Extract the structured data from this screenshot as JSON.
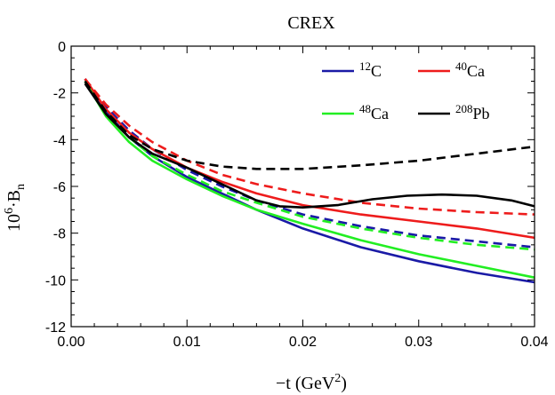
{
  "chart_data": {
    "type": "line",
    "title": "CREX",
    "xlabel": {
      "base": "−t (GeV",
      "sup": "2",
      "end": ")"
    },
    "ylabel": {
      "pre": "10",
      "sup": "6",
      "mid": "·B",
      "sub": "n"
    },
    "xlim": [
      0,
      0.04
    ],
    "ylim": [
      -12,
      0
    ],
    "xticks": [
      {
        "value": 0.0,
        "label": "0.00"
      },
      {
        "value": 0.01,
        "label": "0.01"
      },
      {
        "value": 0.02,
        "label": "0.02"
      },
      {
        "value": 0.03,
        "label": "0.03"
      },
      {
        "value": 0.04,
        "label": "0.04"
      }
    ],
    "yticks": [
      {
        "value": 0,
        "label": "0"
      },
      {
        "value": -2,
        "label": "-2"
      },
      {
        "value": -4,
        "label": "-4"
      },
      {
        "value": -6,
        "label": "-6"
      },
      {
        "value": -8,
        "label": "-8"
      },
      {
        "value": -10,
        "label": "-10"
      },
      {
        "value": -12,
        "label": "-12"
      }
    ],
    "legend": {
      "placement": "top-right",
      "items": [
        {
          "sup": "12",
          "text": "C",
          "color": "#1a1aa6"
        },
        {
          "sup": "40",
          "text": "Ca",
          "color": "#ee1c1c"
        },
        {
          "sup": "48",
          "text": "Ca",
          "color": "#22ee22"
        },
        {
          "sup": "208",
          "text": "Pb",
          "color": "#000000"
        }
      ]
    },
    "series": [
      {
        "key": "c12-solid",
        "color": "#1a1aa6",
        "style": "solid",
        "x": [
          0.0012,
          0.003,
          0.005,
          0.007,
          0.01,
          0.013,
          0.016,
          0.02,
          0.025,
          0.03,
          0.035,
          0.04
        ],
        "y": [
          -1.4,
          -2.8,
          -3.9,
          -4.7,
          -5.6,
          -6.3,
          -7.0,
          -7.8,
          -8.6,
          -9.2,
          -9.7,
          -10.1
        ]
      },
      {
        "key": "c12-dashed",
        "color": "#1a1aa6",
        "style": "dashed",
        "x": [
          0.0012,
          0.003,
          0.005,
          0.007,
          0.01,
          0.013,
          0.016,
          0.02,
          0.025,
          0.03,
          0.035,
          0.04
        ],
        "y": [
          -1.4,
          -2.6,
          -3.6,
          -4.4,
          -5.3,
          -6.0,
          -6.6,
          -7.2,
          -7.7,
          -8.1,
          -8.35,
          -8.6
        ]
      },
      {
        "key": "ca40-solid",
        "color": "#ee1c1c",
        "style": "solid",
        "x": [
          0.0012,
          0.003,
          0.005,
          0.007,
          0.01,
          0.013,
          0.016,
          0.02,
          0.025,
          0.03,
          0.035,
          0.04
        ],
        "y": [
          -1.4,
          -2.7,
          -3.7,
          -4.4,
          -5.2,
          -5.8,
          -6.3,
          -6.8,
          -7.2,
          -7.5,
          -7.8,
          -8.2
        ]
      },
      {
        "key": "ca40-dashed",
        "color": "#ee1c1c",
        "style": "dashed",
        "x": [
          0.0012,
          0.003,
          0.005,
          0.007,
          0.01,
          0.013,
          0.016,
          0.02,
          0.025,
          0.03,
          0.035,
          0.04
        ],
        "y": [
          -1.4,
          -2.5,
          -3.4,
          -4.1,
          -4.9,
          -5.5,
          -5.9,
          -6.3,
          -6.7,
          -6.95,
          -7.1,
          -7.2
        ]
      },
      {
        "key": "ca48-solid",
        "color": "#22ee22",
        "style": "solid",
        "x": [
          0.0012,
          0.003,
          0.005,
          0.007,
          0.01,
          0.013,
          0.016,
          0.02,
          0.025,
          0.03,
          0.035,
          0.04
        ],
        "y": [
          -1.5,
          -3.0,
          -4.1,
          -4.9,
          -5.7,
          -6.4,
          -7.0,
          -7.6,
          -8.3,
          -8.9,
          -9.4,
          -9.9
        ]
      },
      {
        "key": "ca48-dashed",
        "color": "#22ee22",
        "style": "dashed",
        "x": [
          0.0012,
          0.003,
          0.005,
          0.007,
          0.01,
          0.013,
          0.016,
          0.02,
          0.025,
          0.03,
          0.035,
          0.04
        ],
        "y": [
          -1.5,
          -2.9,
          -3.9,
          -4.7,
          -5.5,
          -6.2,
          -6.7,
          -7.3,
          -7.8,
          -8.2,
          -8.5,
          -8.7
        ]
      },
      {
        "key": "pb208-solid",
        "color": "#000000",
        "style": "solid",
        "x": [
          0.0012,
          0.003,
          0.005,
          0.007,
          0.01,
          0.013,
          0.016,
          0.018,
          0.02,
          0.023,
          0.026,
          0.029,
          0.032,
          0.035,
          0.038,
          0.04
        ],
        "y": [
          -1.6,
          -2.9,
          -3.9,
          -4.6,
          -5.2,
          -5.9,
          -6.6,
          -6.85,
          -6.9,
          -6.8,
          -6.55,
          -6.4,
          -6.35,
          -6.4,
          -6.6,
          -6.85
        ]
      },
      {
        "key": "pb208-dashed",
        "color": "#000000",
        "style": "dashed",
        "x": [
          0.0012,
          0.003,
          0.005,
          0.007,
          0.01,
          0.013,
          0.016,
          0.02,
          0.025,
          0.03,
          0.035,
          0.04
        ],
        "y": [
          -1.5,
          -2.8,
          -3.8,
          -4.4,
          -4.9,
          -5.15,
          -5.25,
          -5.25,
          -5.1,
          -4.9,
          -4.6,
          -4.3
        ]
      }
    ]
  }
}
